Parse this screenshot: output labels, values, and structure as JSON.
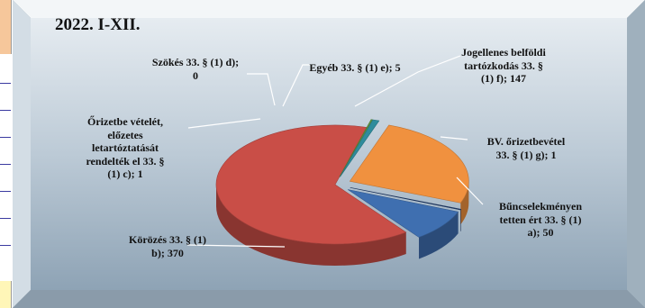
{
  "colors": {
    "frame_gradient": [
      "#e6ecf1",
      "#bccad6",
      "#8ea3b5"
    ],
    "bevel_light": "#f3f6f8",
    "bevel_dark": "#7d8e9c",
    "left_strip_top": "#f6c79b",
    "left_strip_bottom": "#fff6b8",
    "left_strip_lines": "#3a3aa0"
  },
  "chart_data": {
    "type": "pie",
    "style": "3d-exploded",
    "title": "2022. I-XII.",
    "legend": "none",
    "slices": [
      {
        "label": "Bűncselekményen tetten ért 33. § (1) a)",
        "value": 50,
        "color": "#3f6fb0",
        "display": "Bűncselekményen\ntetten ért 33. § (1)\na); 50"
      },
      {
        "label": "Körözés 33. § (1) b)",
        "value": 370,
        "color": "#c94e47",
        "display": "Körözés 33. § (1)\nb); 370"
      },
      {
        "label": "Őrizetbe vételét, előzetes letartóztatását rendelték el 33. § (1) c)",
        "value": 1,
        "color": "#5f9a3f",
        "display": "Őrizetbe vételét,\nelőzetes\nletartóztatását\nrendelték el 33. §\n(1) c); 1"
      },
      {
        "label": "Szökés 33. § (1) d)",
        "value": 0,
        "color": "#7a5fa0",
        "display": "Szökés 33. § (1) d);\n0"
      },
      {
        "label": "Egyéb 33. § (1) e)",
        "value": 5,
        "color": "#2e8c9c",
        "display": "Egyéb 33. § (1) e); 5"
      },
      {
        "label": "Jogellenes belföldi tartózkodás 33. § (1) f)",
        "value": 147,
        "color": "#f0913f",
        "display": "Jogellenes belföldi\ntartózkodás 33. §\n(1) f); 147"
      },
      {
        "label": "BV. őrizetbevétel 33. § (1) g)",
        "value": 1,
        "color": "#1f3c6e",
        "display": "BV. őrizetbevétel\n33. § (1) g); 1"
      }
    ]
  }
}
